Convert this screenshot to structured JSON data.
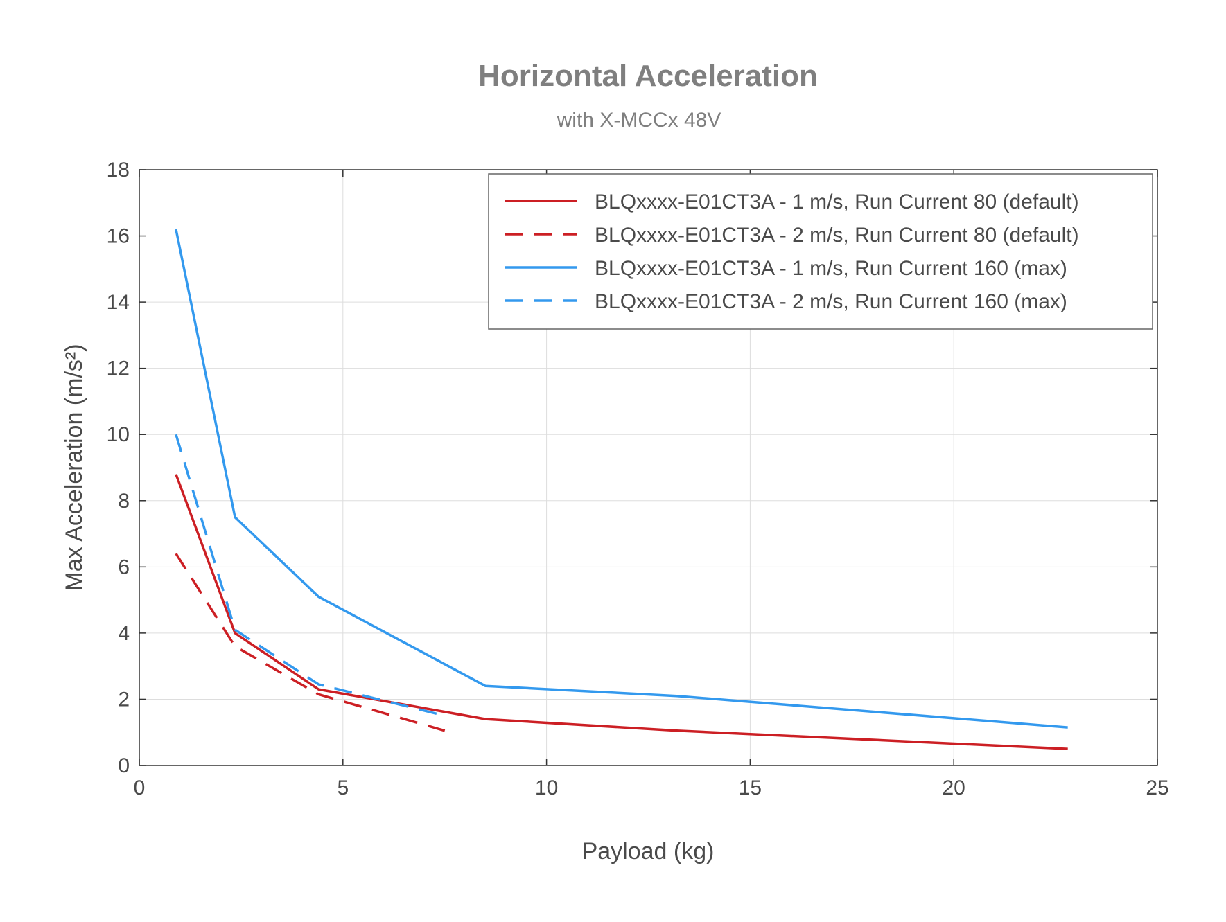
{
  "chart_data": {
    "type": "line",
    "title": "Horizontal Acceleration",
    "subtitle": "with X-MCCx 48V",
    "xlabel": "Payload (kg)",
    "ylabel": "Max Acceleration (m/s²)",
    "xlim": [
      0,
      25
    ],
    "ylim": [
      0,
      18
    ],
    "xticks": [
      0,
      5,
      10,
      15,
      20,
      25
    ],
    "yticks": [
      0,
      2,
      4,
      6,
      8,
      10,
      12,
      14,
      16,
      18
    ],
    "grid": true,
    "legend_position": "top-right",
    "series": [
      {
        "name": "BLQxxxx-E01CT3A - 1 m/s, Run Current 80 (default)",
        "color": "#cc1f24",
        "dash": "solid",
        "x": [
          0.9,
          2.35,
          4.4,
          8.5,
          13.2,
          22.8
        ],
        "y": [
          8.8,
          4.0,
          2.3,
          1.4,
          1.05,
          0.5
        ]
      },
      {
        "name": "BLQxxxx-E01CT3A - 2 m/s, Run Current 80 (default)",
        "color": "#cc1f24",
        "dash": "dashed",
        "x": [
          0.9,
          2.35,
          4.4,
          7.5
        ],
        "y": [
          6.4,
          3.6,
          2.15,
          1.05
        ]
      },
      {
        "name": "BLQxxxx-E01CT3A - 1 m/s, Run Current 160 (max)",
        "color": "#3399ee",
        "dash": "solid",
        "x": [
          0.9,
          2.35,
          4.4,
          8.5,
          13.2,
          22.8
        ],
        "y": [
          16.2,
          7.5,
          5.1,
          2.4,
          2.1,
          1.15
        ]
      },
      {
        "name": "BLQxxxx-E01CT3A - 2 m/s, Run Current 160 (max)",
        "color": "#3399ee",
        "dash": "dashed",
        "x": [
          0.9,
          2.35,
          4.4,
          7.5
        ],
        "y": [
          10.0,
          4.1,
          2.45,
          1.5
        ]
      }
    ]
  }
}
